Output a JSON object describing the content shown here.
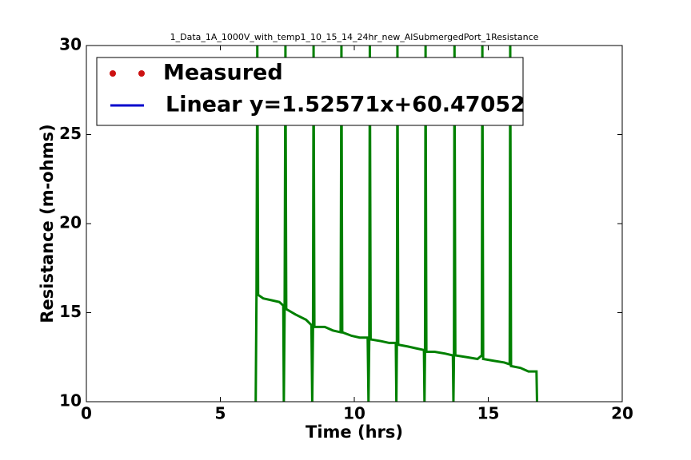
{
  "chart_data": {
    "type": "line",
    "title": "1_Data_1A_1000V_with_temp1_10_15_14_24hr_new_AlSubmergedPort_1Resistance",
    "x_label": "Time (hrs)",
    "y_label": "Resistance (m-ohms)",
    "xlim": [
      0,
      20
    ],
    "xticks": [
      0,
      5,
      10,
      15,
      20
    ],
    "ylim": [
      10,
      30
    ],
    "yticks": [
      10,
      15,
      20,
      25,
      30
    ],
    "legend_position": "upper left",
    "legend": [
      {
        "label": "Measured",
        "color": "#cc1111",
        "marker": "dot"
      },
      {
        "label": "Linear y=1.52571x+60.47052",
        "color": "#0000cc",
        "marker": "line"
      }
    ],
    "series": [
      {
        "color": "#008000",
        "x": [
          6.32,
          6.35,
          6.38,
          6.41,
          6.6,
          6.9,
          7.2,
          7.35,
          7.37,
          7.4,
          7.43,
          7.46,
          7.8,
          8.2,
          8.4,
          8.43,
          8.46,
          8.48,
          8.51,
          8.9,
          9.2,
          9.49,
          9.52,
          9.55,
          9.9,
          10.2,
          10.5,
          10.53,
          10.56,
          10.58,
          10.61,
          11.0,
          11.3,
          11.55,
          11.57,
          11.59,
          11.61,
          11.64,
          12.0,
          12.3,
          12.6,
          12.62,
          12.64,
          12.66,
          12.69,
          13.0,
          13.4,
          13.68,
          13.7,
          13.72,
          13.74,
          13.77,
          14.2,
          14.6,
          14.76,
          14.78,
          14.81,
          15.2,
          15.6,
          15.8,
          15.82,
          15.85,
          16.2,
          16.5,
          16.8,
          16.82
        ],
        "values": [
          10,
          16.1,
          30,
          16.0,
          15.8,
          15.7,
          15.6,
          15.4,
          10,
          15.3,
          30,
          15.2,
          14.9,
          14.6,
          14.3,
          10,
          14.3,
          30,
          14.2,
          14.2,
          14.0,
          13.9,
          30,
          13.9,
          13.7,
          13.6,
          13.6,
          10,
          13.7,
          30,
          13.5,
          13.4,
          13.3,
          13.3,
          10,
          13.3,
          30,
          13.2,
          13.1,
          13.0,
          12.9,
          10,
          12.9,
          30,
          12.8,
          12.8,
          12.7,
          12.6,
          10,
          12.6,
          30,
          12.6,
          12.5,
          12.4,
          12.6,
          30,
          12.4,
          12.3,
          12.2,
          12.1,
          30,
          12.0,
          11.9,
          11.7,
          11.7,
          10
        ]
      }
    ]
  }
}
